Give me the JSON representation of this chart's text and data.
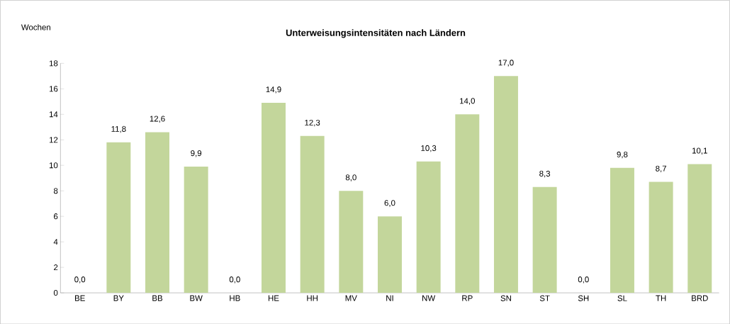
{
  "chart_data": {
    "type": "bar",
    "title": "Unterweisungsintensitäten nach Ländern",
    "ylabel": "Wochen",
    "categories": [
      "BE",
      "BY",
      "BB",
      "BW",
      "HB",
      "HE",
      "HH",
      "MV",
      "NI",
      "NW",
      "RP",
      "SN",
      "ST",
      "SH",
      "SL",
      "TH",
      "BRD"
    ],
    "values": [
      0.0,
      11.8,
      12.6,
      9.9,
      0.0,
      14.9,
      12.3,
      8.0,
      6.0,
      10.3,
      14.0,
      17.0,
      8.3,
      0.0,
      9.8,
      8.7,
      10.1
    ],
    "value_labels": [
      "0,0",
      "11,8",
      "12,6",
      "9,9",
      "0,0",
      "14,9",
      "12,3",
      "8,0",
      "6,0",
      "10,3",
      "14,0",
      "17,0",
      "8,3",
      "0,0",
      "9,8",
      "8,7",
      "10,1"
    ],
    "color": "#c3d69b",
    "ylim": [
      0,
      18
    ],
    "yticks": [
      0,
      2,
      4,
      6,
      8,
      10,
      12,
      14,
      16,
      18
    ],
    "grid": false
  }
}
